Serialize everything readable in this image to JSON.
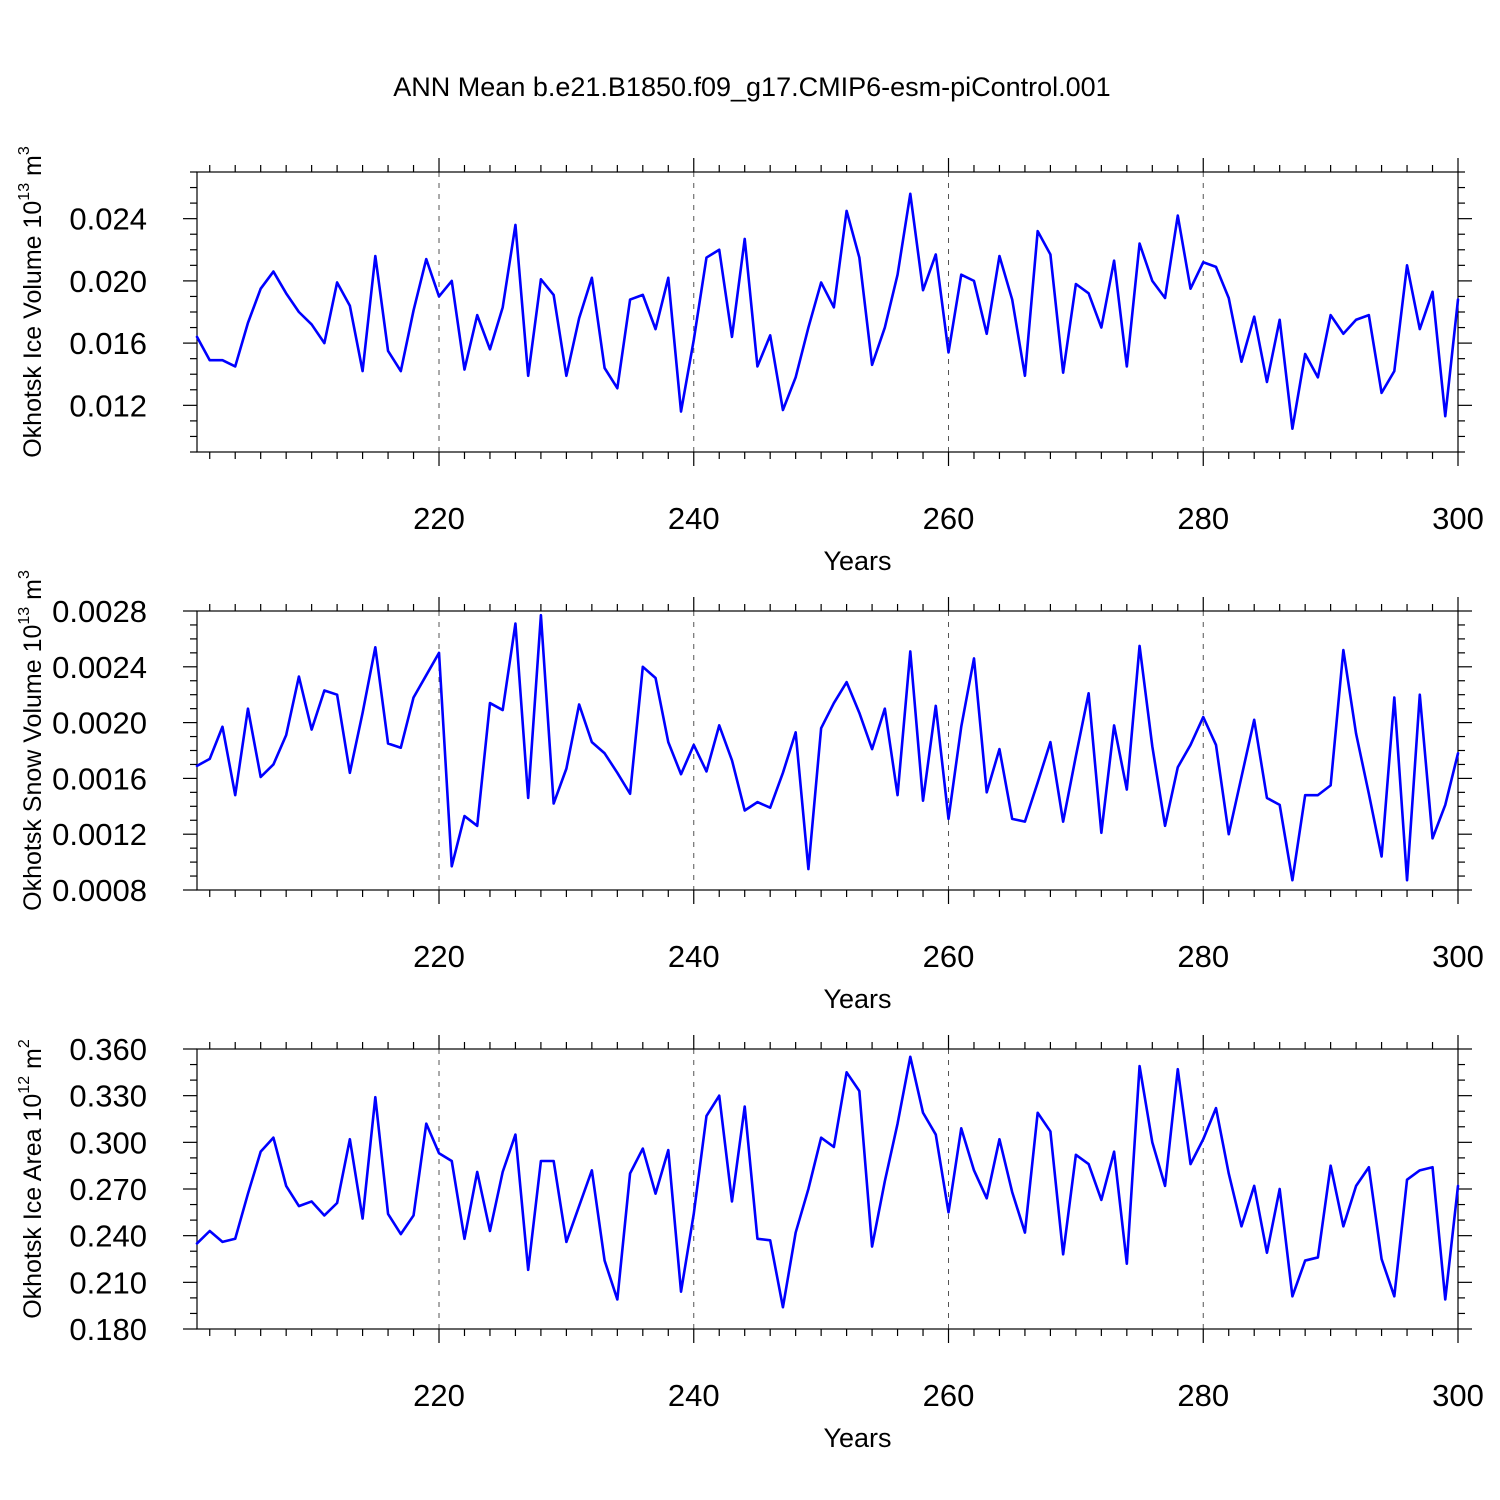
{
  "figure": {
    "title": "ANN Mean b.e21.B1850.f09_g17.CMIP6-esm-piControl.001",
    "line_color": "#0000ff",
    "grid_color": "#555555"
  },
  "chart_data": [
    {
      "type": "line",
      "name": "okhotsk-ice-volume",
      "xlabel": "Years",
      "ylabel_main": "Okhotsk Ice Volume 10",
      "ylabel_exp": "13",
      "ylabel_unit": " m",
      "ylabel_unit_exp": "3",
      "xlim": [
        201,
        300
      ],
      "ylim": [
        0.009,
        0.027
      ],
      "x_ticks": [
        220,
        240,
        260,
        280,
        300
      ],
      "x_tick_labels": [
        "220",
        "240",
        "260",
        "280",
        "300"
      ],
      "y_ticks": [
        0.012,
        0.016,
        0.02,
        0.024
      ],
      "y_tick_labels": [
        "0.012",
        "0.016",
        "0.020",
        "0.024"
      ],
      "x_minor_step": 2,
      "y_minor_step": 0.001,
      "grid_x": [
        220,
        240,
        260,
        280
      ],
      "x_start": 201,
      "values": [
        0.0164,
        0.0149,
        0.0149,
        0.0145,
        0.0173,
        0.0195,
        0.0206,
        0.0192,
        0.018,
        0.0172,
        0.016,
        0.0199,
        0.0184,
        0.0142,
        0.0216,
        0.0155,
        0.0142,
        0.0181,
        0.0214,
        0.019,
        0.02,
        0.0143,
        0.0178,
        0.0156,
        0.0183,
        0.0236,
        0.0139,
        0.0201,
        0.0191,
        0.0139,
        0.0176,
        0.0202,
        0.0144,
        0.0131,
        0.0188,
        0.0191,
        0.0169,
        0.0202,
        0.0116,
        0.0162,
        0.0215,
        0.022,
        0.0164,
        0.0227,
        0.0145,
        0.0165,
        0.0117,
        0.0138,
        0.017,
        0.0199,
        0.0183,
        0.0245,
        0.0215,
        0.0146,
        0.017,
        0.0204,
        0.0256,
        0.0194,
        0.0217,
        0.0154,
        0.0204,
        0.02,
        0.0166,
        0.0216,
        0.0188,
        0.0139,
        0.0232,
        0.0217,
        0.0141,
        0.0198,
        0.0192,
        0.017,
        0.0213,
        0.0145,
        0.0224,
        0.02,
        0.0189,
        0.0242,
        0.0195,
        0.0212,
        0.0209,
        0.0189,
        0.0148,
        0.0177,
        0.0135,
        0.0175,
        0.0105,
        0.0153,
        0.0138,
        0.0178,
        0.0166,
        0.0175,
        0.0178,
        0.0128,
        0.0142,
        0.021,
        0.0169,
        0.0193,
        0.0113,
        0.0188
      ]
    },
    {
      "type": "line",
      "name": "okhotsk-snow-volume",
      "xlabel": "Years",
      "ylabel_main": "Okhotsk Snow Volume 10",
      "ylabel_exp": "13",
      "ylabel_unit": " m",
      "ylabel_unit_exp": "3",
      "xlim": [
        201,
        300
      ],
      "ylim": [
        0.0008,
        0.0028
      ],
      "x_ticks": [
        220,
        240,
        260,
        280,
        300
      ],
      "x_tick_labels": [
        "220",
        "240",
        "260",
        "280",
        "300"
      ],
      "y_ticks": [
        0.0008,
        0.0012,
        0.0016,
        0.002,
        0.0024,
        0.0028
      ],
      "y_tick_labels": [
        "0.0008",
        "0.0012",
        "0.0016",
        "0.0020",
        "0.0024",
        "0.0028"
      ],
      "x_minor_step": 2,
      "y_minor_step": 0.0001,
      "grid_x": [
        220,
        240,
        260,
        280
      ],
      "x_start": 201,
      "values": [
        0.00169,
        0.00174,
        0.00197,
        0.00148,
        0.0021,
        0.00161,
        0.0017,
        0.00191,
        0.00233,
        0.00195,
        0.00223,
        0.0022,
        0.00164,
        0.00207,
        0.00254,
        0.00185,
        0.00182,
        0.00218,
        0.00234,
        0.0025,
        0.00097,
        0.00133,
        0.00126,
        0.00214,
        0.00209,
        0.00271,
        0.00146,
        0.00277,
        0.00142,
        0.00167,
        0.00213,
        0.00186,
        0.00178,
        0.00164,
        0.00149,
        0.0024,
        0.00232,
        0.00186,
        0.00163,
        0.00184,
        0.00165,
        0.00198,
        0.00173,
        0.00137,
        0.00143,
        0.00139,
        0.00164,
        0.00193,
        0.00095,
        0.00196,
        0.00214,
        0.00229,
        0.00207,
        0.00181,
        0.0021,
        0.00148,
        0.00251,
        0.00144,
        0.00212,
        0.00131,
        0.00197,
        0.00246,
        0.0015,
        0.00181,
        0.00131,
        0.00129,
        0.00157,
        0.00186,
        0.00129,
        0.00176,
        0.00221,
        0.00121,
        0.00198,
        0.00152,
        0.00255,
        0.00183,
        0.00126,
        0.00168,
        0.00184,
        0.00204,
        0.00184,
        0.0012,
        0.00161,
        0.00202,
        0.00146,
        0.00141,
        0.00087,
        0.00148,
        0.00148,
        0.00155,
        0.00252,
        0.00192,
        0.00149,
        0.00104,
        0.00218,
        0.00087,
        0.0022,
        0.00117,
        0.00141,
        0.00178
      ]
    },
    {
      "type": "line",
      "name": "okhotsk-ice-area",
      "xlabel": "Years",
      "ylabel_main": "Okhotsk Ice Area 10",
      "ylabel_exp": "12",
      "ylabel_unit": " m",
      "ylabel_unit_exp": "2",
      "xlim": [
        201,
        300
      ],
      "ylim": [
        0.18,
        0.36
      ],
      "x_ticks": [
        220,
        240,
        260,
        280,
        300
      ],
      "x_tick_labels": [
        "220",
        "240",
        "260",
        "280",
        "300"
      ],
      "y_ticks": [
        0.18,
        0.21,
        0.24,
        0.27,
        0.3,
        0.33,
        0.36
      ],
      "y_tick_labels": [
        "0.180",
        "0.210",
        "0.240",
        "0.270",
        "0.300",
        "0.330",
        "0.360"
      ],
      "x_minor_step": 2,
      "y_minor_step": 0.01,
      "grid_x": [
        220,
        240,
        260,
        280
      ],
      "x_start": 201,
      "values": [
        0.235,
        0.243,
        0.236,
        0.238,
        0.267,
        0.294,
        0.303,
        0.272,
        0.259,
        0.262,
        0.253,
        0.261,
        0.302,
        0.251,
        0.329,
        0.254,
        0.241,
        0.253,
        0.312,
        0.293,
        0.288,
        0.238,
        0.281,
        0.243,
        0.281,
        0.305,
        0.218,
        0.288,
        0.288,
        0.236,
        0.259,
        0.282,
        0.224,
        0.199,
        0.28,
        0.296,
        0.267,
        0.295,
        0.204,
        0.254,
        0.317,
        0.33,
        0.262,
        0.323,
        0.238,
        0.237,
        0.194,
        0.242,
        0.27,
        0.303,
        0.297,
        0.345,
        0.333,
        0.233,
        0.275,
        0.312,
        0.355,
        0.319,
        0.305,
        0.255,
        0.309,
        0.282,
        0.264,
        0.302,
        0.268,
        0.242,
        0.319,
        0.307,
        0.228,
        0.292,
        0.286,
        0.263,
        0.294,
        0.222,
        0.349,
        0.3,
        0.272,
        0.347,
        0.286,
        0.302,
        0.322,
        0.28,
        0.246,
        0.272,
        0.229,
        0.27,
        0.201,
        0.224,
        0.226,
        0.285,
        0.246,
        0.272,
        0.284,
        0.225,
        0.201,
        0.276,
        0.282,
        0.284,
        0.199,
        0.272
      ]
    }
  ]
}
